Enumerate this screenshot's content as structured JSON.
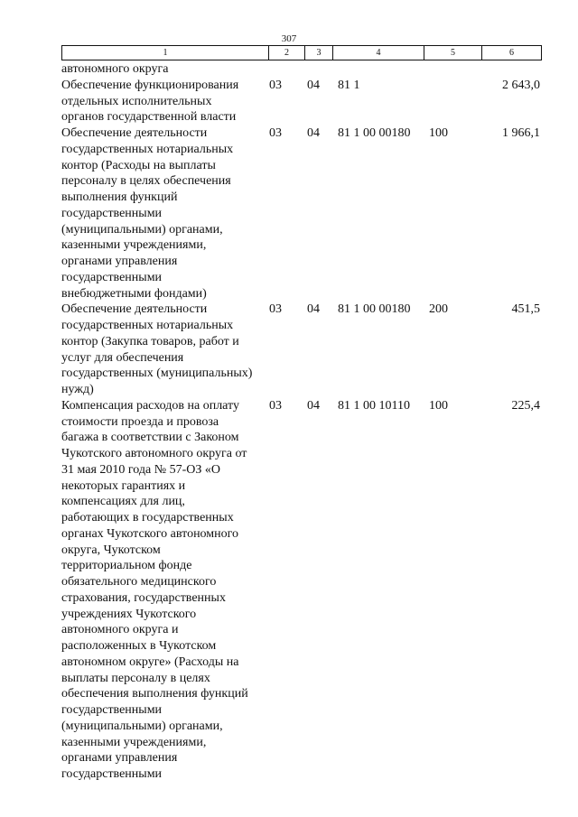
{
  "page_number": "307",
  "header": [
    "1",
    "2",
    "3",
    "4",
    "5",
    "6"
  ],
  "rows": [
    {
      "lines": [
        "автономного округа"
      ],
      "c2": "",
      "c3": "",
      "c4": "",
      "c5": "",
      "c6": ""
    },
    {
      "lines": [
        "Обеспечение функционирования",
        "отдельных исполнительных",
        "органов государственной власти"
      ],
      "c2": "03",
      "c3": "04",
      "c4": "81 1",
      "c5": "",
      "c6": "2 643,0"
    },
    {
      "lines": [
        "Обеспечение деятельности",
        "государственных нотариальных",
        "контор (Расходы на выплаты",
        "персоналу в целях обеспечения",
        "выполнения функций",
        "государственными",
        "(муниципальными) органами,",
        "казенными учреждениями,",
        "органами управления",
        "государственными",
        "внебюджетными фондами)"
      ],
      "c2": "03",
      "c3": "04",
      "c4": "81 1 00 00180",
      "c5": "100",
      "c6": "1 966,1"
    },
    {
      "lines": [
        "Обеспечение деятельности",
        "государственных нотариальных",
        "контор (Закупка товаров, работ и",
        "услуг для обеспечения",
        "государственных (муниципальных)",
        "нужд)"
      ],
      "c2": "03",
      "c3": "04",
      "c4": "81 1 00 00180",
      "c5": "200",
      "c6": "451,5"
    },
    {
      "lines": [
        "Компенсация расходов на оплату",
        "стоимости проезда и провоза",
        "багажа в соответствии с Законом",
        "Чукотского автономного округа от",
        "31 мая 2010 года № 57-ОЗ «О",
        "некоторых гарантиях и",
        "компенсациях для лиц,",
        "работающих в государственных",
        "органах Чукотского автономного",
        "округа, Чукотском",
        "территориальном фонде",
        "обязательного медицинского",
        "страхования, государственных",
        "учреждениях Чукотского",
        "автономного округа и",
        "расположенных в Чукотском",
        "автономном округе» (Расходы на",
        "выплаты персоналу в целях",
        "обеспечения выполнения функций",
        "государственными",
        "(муниципальными) органами,",
        "казенными учреждениями,",
        "органами управления",
        "государственными"
      ],
      "c2": "03",
      "c3": "04",
      "c4": "81 1 00 10110",
      "c5": "100",
      "c6": "225,4"
    }
  ]
}
